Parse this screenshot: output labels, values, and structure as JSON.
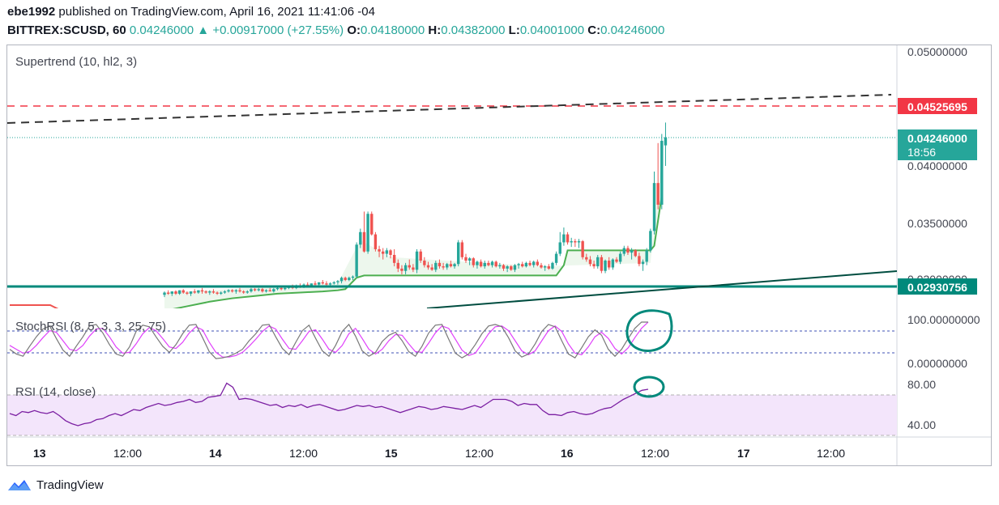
{
  "header": {
    "publisher": "ebe1992",
    "published_text": "published on TradingView.com, April 16, 2021 11:41:06 -04",
    "symbol": "BITTREX:SCUSD, 60",
    "price": "0.04246000",
    "change": "+0.00917000 (+27.55%)",
    "o_label": "O:",
    "o_value": "0.04180000",
    "h_label": "H:",
    "h_value": "0.04382000",
    "l_label": "L:",
    "l_value": "0.04001000",
    "c_label": "C:",
    "c_value": "0.04246000"
  },
  "footer": {
    "brand": "TradingView",
    "icon": "tradingview-logo-icon"
  },
  "colors": {
    "up": "#26a69a",
    "down": "#ef5350",
    "supertrend": "#4caf50",
    "stoch_k": "#787878",
    "stoch_d": "#e040fb",
    "rsi": "#7b1fa2",
    "rsi_band": "#f3e5fb",
    "marker": "#00897b",
    "resistance": "#f23645",
    "support": "#00897b"
  },
  "chart_data": {
    "type": "candlestick",
    "ohlc": [
      [
        0.0287,
        0.029,
        0.0285,
        0.0289
      ],
      [
        0.0289,
        0.0291,
        0.0287,
        0.0288
      ],
      [
        0.0288,
        0.029,
        0.0286,
        0.029
      ],
      [
        0.029,
        0.0291,
        0.0287,
        0.0288
      ],
      [
        0.0288,
        0.0291,
        0.0287,
        0.0291
      ],
      [
        0.0291,
        0.0292,
        0.0288,
        0.0289
      ],
      [
        0.0289,
        0.029,
        0.0287,
        0.0288
      ],
      [
        0.0288,
        0.029,
        0.0286,
        0.029
      ],
      [
        0.029,
        0.0292,
        0.0288,
        0.0289
      ],
      [
        0.0289,
        0.0291,
        0.0288,
        0.0291
      ],
      [
        0.0291,
        0.0293,
        0.0288,
        0.029
      ],
      [
        0.029,
        0.0291,
        0.0288,
        0.0289
      ],
      [
        0.0289,
        0.0291,
        0.0287,
        0.029
      ],
      [
        0.029,
        0.0292,
        0.0288,
        0.0289
      ],
      [
        0.0289,
        0.029,
        0.0287,
        0.0288
      ],
      [
        0.0288,
        0.029,
        0.0287,
        0.0289
      ],
      [
        0.0289,
        0.0291,
        0.0288,
        0.029
      ],
      [
        0.029,
        0.0292,
        0.0289,
        0.0291
      ],
      [
        0.0291,
        0.0292,
        0.0289,
        0.029
      ],
      [
        0.029,
        0.0292,
        0.0288,
        0.0291
      ],
      [
        0.0291,
        0.0293,
        0.0289,
        0.029
      ],
      [
        0.029,
        0.0291,
        0.0288,
        0.0289
      ],
      [
        0.0289,
        0.0291,
        0.0288,
        0.029
      ],
      [
        0.029,
        0.0293,
        0.0289,
        0.0292
      ],
      [
        0.0292,
        0.0293,
        0.029,
        0.0291
      ],
      [
        0.0291,
        0.0293,
        0.029,
        0.0292
      ],
      [
        0.0292,
        0.0293,
        0.0289,
        0.029
      ],
      [
        0.029,
        0.0292,
        0.0289,
        0.0291
      ],
      [
        0.0291,
        0.0293,
        0.029,
        0.029
      ],
      [
        0.029,
        0.0293,
        0.0289,
        0.0292
      ],
      [
        0.0292,
        0.0294,
        0.0291,
        0.0293
      ],
      [
        0.0293,
        0.0294,
        0.0291,
        0.0292
      ],
      [
        0.0292,
        0.0294,
        0.0291,
        0.0293
      ],
      [
        0.0293,
        0.0295,
        0.0292,
        0.0294
      ],
      [
        0.0294,
        0.0296,
        0.0292,
        0.0293
      ],
      [
        0.0293,
        0.0296,
        0.0292,
        0.0295
      ],
      [
        0.0295,
        0.0297,
        0.0293,
        0.0294
      ],
      [
        0.0294,
        0.0297,
        0.0293,
        0.0296
      ],
      [
        0.0296,
        0.0298,
        0.0294,
        0.0295
      ],
      [
        0.0295,
        0.0297,
        0.0294,
        0.0297
      ],
      [
        0.0297,
        0.0299,
        0.0295,
        0.0296
      ],
      [
        0.0296,
        0.0298,
        0.0295,
        0.0298
      ],
      [
        0.0298,
        0.03,
        0.0296,
        0.0297
      ],
      [
        0.0297,
        0.0299,
        0.0295,
        0.0296
      ],
      [
        0.0296,
        0.0298,
        0.0295,
        0.0297
      ],
      [
        0.0297,
        0.0299,
        0.0296,
        0.0298
      ],
      [
        0.0298,
        0.03,
        0.0296,
        0.0299
      ],
      [
        0.0299,
        0.0303,
        0.0297,
        0.0302
      ],
      [
        0.0302,
        0.0303,
        0.0299,
        0.03
      ],
      [
        0.03,
        0.0303,
        0.0299,
        0.0302
      ],
      [
        0.0302,
        0.0304,
        0.03,
        0.0303
      ],
      [
        0.0303,
        0.0333,
        0.0302,
        0.0331
      ],
      [
        0.0331,
        0.0345,
        0.0328,
        0.0342
      ],
      [
        0.0342,
        0.036,
        0.0324,
        0.0325
      ],
      [
        0.0325,
        0.036,
        0.0323,
        0.0358
      ],
      [
        0.0358,
        0.036,
        0.0339,
        0.034
      ],
      [
        0.034,
        0.0342,
        0.0325,
        0.0327
      ],
      [
        0.0327,
        0.033,
        0.032,
        0.0325
      ],
      [
        0.0325,
        0.0328,
        0.0318,
        0.0323
      ],
      [
        0.0323,
        0.0328,
        0.032,
        0.0326
      ],
      [
        0.0326,
        0.0327,
        0.0319,
        0.0322
      ],
      [
        0.0322,
        0.0327,
        0.0312,
        0.0315
      ],
      [
        0.0315,
        0.0318,
        0.0307,
        0.031
      ],
      [
        0.031,
        0.0313,
        0.0305,
        0.0308
      ],
      [
        0.0308,
        0.0315,
        0.0305,
        0.0313
      ],
      [
        0.0313,
        0.0318,
        0.0309,
        0.0311
      ],
      [
        0.0311,
        0.0314,
        0.0307,
        0.0309
      ],
      [
        0.0309,
        0.0327,
        0.0306,
        0.0325
      ],
      [
        0.0325,
        0.0327,
        0.0315,
        0.0317
      ],
      [
        0.0317,
        0.032,
        0.0311,
        0.0313
      ],
      [
        0.0313,
        0.0316,
        0.0309,
        0.0311
      ],
      [
        0.0311,
        0.0314,
        0.0308,
        0.0309
      ],
      [
        0.0309,
        0.0317,
        0.0307,
        0.0315
      ],
      [
        0.0315,
        0.0318,
        0.031,
        0.0312
      ],
      [
        0.0312,
        0.0315,
        0.0309,
        0.0311
      ],
      [
        0.0311,
        0.0315,
        0.0309,
        0.0314
      ],
      [
        0.0314,
        0.0317,
        0.0311,
        0.0312
      ],
      [
        0.0312,
        0.0315,
        0.031,
        0.0314
      ],
      [
        0.0314,
        0.0335,
        0.0312,
        0.0333
      ],
      [
        0.0333,
        0.0335,
        0.0318,
        0.032
      ],
      [
        0.032,
        0.0323,
        0.0315,
        0.0317
      ],
      [
        0.0317,
        0.032,
        0.0313,
        0.0319
      ],
      [
        0.0319,
        0.032,
        0.0311,
        0.0313
      ],
      [
        0.0313,
        0.0317,
        0.031,
        0.0316
      ],
      [
        0.0316,
        0.0318,
        0.0311,
        0.0312
      ],
      [
        0.0312,
        0.0317,
        0.031,
        0.0315
      ],
      [
        0.0315,
        0.0317,
        0.0312,
        0.0313
      ],
      [
        0.0313,
        0.0317,
        0.0311,
        0.0316
      ],
      [
        0.0316,
        0.0317,
        0.0311,
        0.0312
      ],
      [
        0.0312,
        0.0315,
        0.031,
        0.0313
      ],
      [
        0.0313,
        0.0314,
        0.0308,
        0.031
      ],
      [
        0.031,
        0.0313,
        0.0307,
        0.0312
      ],
      [
        0.0312,
        0.0313,
        0.0308,
        0.0309
      ],
      [
        0.0309,
        0.0314,
        0.0307,
        0.0313
      ],
      [
        0.0313,
        0.0315,
        0.031,
        0.0314
      ],
      [
        0.0314,
        0.0316,
        0.0311,
        0.0312
      ],
      [
        0.0312,
        0.0316,
        0.0311,
        0.0315
      ],
      [
        0.0315,
        0.0317,
        0.0312,
        0.0313
      ],
      [
        0.0313,
        0.0317,
        0.0311,
        0.0316
      ],
      [
        0.0316,
        0.0318,
        0.0312,
        0.0313
      ],
      [
        0.0313,
        0.0315,
        0.031,
        0.0311
      ],
      [
        0.0311,
        0.0313,
        0.0308,
        0.0312
      ],
      [
        0.0312,
        0.0314,
        0.0309,
        0.031
      ],
      [
        0.031,
        0.0316,
        0.0309,
        0.0315
      ],
      [
        0.0315,
        0.0325,
        0.0313,
        0.0323
      ],
      [
        0.0323,
        0.0342,
        0.0321,
        0.0333
      ],
      [
        0.0333,
        0.0346,
        0.033,
        0.034
      ],
      [
        0.034,
        0.0342,
        0.0331,
        0.0333
      ],
      [
        0.0333,
        0.0337,
        0.0329,
        0.0334
      ],
      [
        0.0334,
        0.0336,
        0.0329,
        0.0333
      ],
      [
        0.0333,
        0.0336,
        0.0328,
        0.0334
      ],
      [
        0.0334,
        0.0335,
        0.0318,
        0.032
      ],
      [
        0.032,
        0.0323,
        0.0316,
        0.0318
      ],
      [
        0.0318,
        0.0321,
        0.0312,
        0.0314
      ],
      [
        0.0314,
        0.0317,
        0.031,
        0.0312
      ],
      [
        0.0312,
        0.0322,
        0.031,
        0.032
      ],
      [
        0.032,
        0.0322,
        0.0306,
        0.0308
      ],
      [
        0.0308,
        0.0318,
        0.0306,
        0.0317
      ],
      [
        0.0317,
        0.032,
        0.0309,
        0.0311
      ],
      [
        0.0311,
        0.0319,
        0.0309,
        0.0318
      ],
      [
        0.0318,
        0.032,
        0.0315,
        0.0316
      ],
      [
        0.0316,
        0.0325,
        0.0314,
        0.0323
      ],
      [
        0.0323,
        0.033,
        0.0321,
        0.0328
      ],
      [
        0.0328,
        0.033,
        0.0322,
        0.0324
      ],
      [
        0.0324,
        0.0328,
        0.0318,
        0.0326
      ],
      [
        0.0326,
        0.0327,
        0.032,
        0.0321
      ],
      [
        0.0321,
        0.0324,
        0.0312,
        0.0314
      ],
      [
        0.0314,
        0.0318,
        0.0308,
        0.0316
      ],
      [
        0.0316,
        0.0328,
        0.0313,
        0.0326
      ],
      [
        0.0326,
        0.0345,
        0.0324,
        0.0343
      ],
      [
        0.0343,
        0.0395,
        0.034,
        0.0385
      ],
      [
        0.0385,
        0.042,
        0.0362,
        0.0366
      ],
      [
        0.0366,
        0.0428,
        0.0362,
        0.0422
      ],
      [
        0.0418,
        0.0438,
        0.04,
        0.0425
      ]
    ],
    "supertrend": [
      [
        0,
        0.0273
      ],
      [
        6,
        0.0277
      ],
      [
        12,
        0.0281
      ],
      [
        18,
        0.0284
      ],
      [
        24,
        0.0286
      ],
      [
        30,
        0.0288
      ],
      [
        36,
        0.0289
      ],
      [
        42,
        0.029
      ],
      [
        46,
        0.0291
      ],
      [
        48,
        0.0292
      ],
      [
        51,
        0.0302
      ],
      [
        53,
        0.0304
      ],
      [
        60,
        0.0304
      ],
      [
        80,
        0.0304
      ],
      [
        100,
        0.0304
      ],
      [
        104,
        0.0304
      ],
      [
        106,
        0.0313
      ],
      [
        107,
        0.0326
      ],
      [
        110,
        0.0326
      ],
      [
        125,
        0.0326
      ],
      [
        129,
        0.0326
      ],
      [
        130,
        0.033
      ],
      [
        131,
        0.0352
      ],
      [
        132,
        0.0374
      ]
    ],
    "stoch_k": [
      30,
      18,
      12,
      38,
      62,
      82,
      90,
      58,
      28,
      12,
      38,
      62,
      90,
      94,
      72,
      42,
      18,
      12,
      36,
      76,
      92,
      88,
      62,
      38,
      22,
      42,
      70,
      92,
      94,
      60,
      24,
      6,
      8,
      12,
      20,
      30,
      52,
      70,
      92,
      94,
      62,
      32,
      16,
      48,
      78,
      92,
      58,
      26,
      12,
      40,
      76,
      94,
      64,
      26,
      12,
      22,
      50,
      66,
      74,
      52,
      24,
      12,
      38,
      72,
      92,
      94,
      56,
      20,
      8,
      18,
      42,
      70,
      90,
      94,
      88,
      60,
      26,
      10,
      18,
      44,
      76,
      94,
      88,
      52,
      18,
      8,
      34,
      62,
      80,
      66,
      30,
      12,
      30,
      58,
      84,
      100,
      100
    ],
    "stoch_d": [
      40,
      30,
      20,
      24,
      40,
      60,
      78,
      74,
      52,
      30,
      26,
      40,
      64,
      82,
      84,
      62,
      36,
      20,
      22,
      44,
      70,
      86,
      78,
      58,
      36,
      32,
      48,
      72,
      88,
      80,
      48,
      22,
      10,
      10,
      14,
      22,
      38,
      56,
      76,
      90,
      82,
      56,
      32,
      30,
      52,
      76,
      80,
      56,
      30,
      22,
      40,
      70,
      84,
      58,
      30,
      18,
      30,
      52,
      68,
      66,
      44,
      24,
      22,
      46,
      72,
      90,
      84,
      56,
      28,
      14,
      20,
      44,
      70,
      88,
      90,
      78,
      52,
      26,
      16,
      26,
      52,
      78,
      90,
      76,
      44,
      20,
      16,
      36,
      62,
      74,
      58,
      32,
      18,
      34,
      60,
      84,
      100
    ],
    "rsi": [
      52,
      50,
      54,
      53,
      55,
      53,
      52,
      54,
      50,
      45,
      42,
      40,
      42,
      43,
      46,
      47,
      50,
      52,
      50,
      53,
      56,
      55,
      58,
      60,
      62,
      60,
      61,
      63,
      64,
      66,
      63,
      64,
      68,
      69,
      70,
      82,
      78,
      66,
      67,
      66,
      64,
      62,
      60,
      61,
      58,
      60,
      59,
      61,
      58,
      60,
      61,
      59,
      57,
      55,
      56,
      58,
      60,
      59,
      60,
      58,
      59,
      57,
      55,
      53,
      55,
      57,
      59,
      58,
      56,
      57,
      59,
      58,
      57,
      56,
      58,
      60,
      58,
      62,
      66,
      66,
      66,
      64,
      60,
      62,
      61,
      61,
      55,
      51,
      51,
      50,
      53,
      54,
      52,
      51,
      52,
      55,
      57,
      58,
      62,
      66,
      69,
      72,
      75,
      76
    ],
    "y_axis_labels": [
      "0.05000000",
      "0.04000000",
      "0.03500000",
      "0.03000000"
    ],
    "price_tags": {
      "resistance": "0.04525695",
      "last": "0.04246000",
      "timer": "18:56",
      "support": "0.02930756"
    },
    "x_axis_labels": [
      "13",
      "12:00",
      "14",
      "12:00",
      "15",
      "12:00",
      "16",
      "12:00",
      "17",
      "12:00"
    ],
    "indicators": {
      "supertrend": "Supertrend (10, hl2, 3)",
      "stochrsi": "StochRSI (8, 5, 3, 3, 25, 75)",
      "rsi": "RSI (14, close)",
      "stoch_labels": [
        "100.00000000",
        "0.00000000"
      ],
      "rsi_labels": [
        "80.00",
        "40.00"
      ]
    }
  }
}
